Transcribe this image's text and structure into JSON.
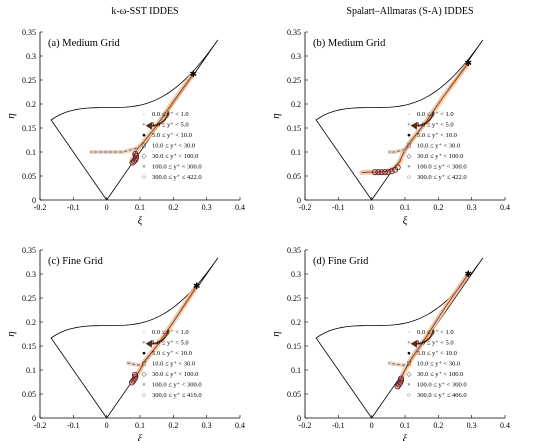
{
  "column_titles": [
    "k-ω-SST IDDES",
    "Spalart–Allmaras (S-A) IDDES"
  ],
  "chart_data": [
    {
      "type": "scatter",
      "title": "(a) Medium Grid",
      "xlabel": "ξ",
      "ylabel": "η",
      "xlim": [
        -0.2,
        0.4
      ],
      "ylim": [
        0,
        0.35
      ],
      "xticks": [
        "-0.2",
        "-0.1",
        "0",
        "0.1",
        "0.2",
        "0.3",
        "0.4"
      ],
      "yticks": [
        "0",
        "0.05",
        "0.1",
        "0.15",
        "0.2",
        "0.25",
        "0.3",
        "0.35"
      ],
      "legend": [
        "0.0 ≤ y⁺ < 1.0",
        "1.0 ≤ y⁺ < 5.0",
        "5.0 ≤ y⁺ < 10.0",
        "10.0 ≤ y⁺ < 30.0",
        "30.0 ≤ y⁺ < 100.0",
        "100.0 ≤ y⁺ < 300.0",
        "300.0 ≤ y⁺ ≤ 422.0"
      ],
      "legend_position": "inside-right",
      "trajectory": [
        [
          0.26,
          0.263
        ],
        [
          0.2,
          0.205
        ],
        [
          0.15,
          0.155
        ],
        [
          0.11,
          0.12
        ],
        [
          0.09,
          0.105
        ],
        [
          0.085,
          0.095
        ],
        [
          0.08,
          0.088
        ],
        [
          0.075,
          0.082
        ],
        [
          0.075,
          0.077
        ]
      ],
      "dashed_branch": [
        [
          0.09,
          0.108
        ],
        [
          0.05,
          0.1
        ],
        [
          0.0,
          0.1
        ],
        [
          -0.05,
          0.1
        ]
      ],
      "wall_points": [
        [
          0.078,
          0.078
        ],
        [
          0.082,
          0.081
        ],
        [
          0.086,
          0.084
        ],
        [
          0.088,
          0.088
        ],
        [
          0.088,
          0.092
        ],
        [
          0.086,
          0.096
        ]
      ]
    },
    {
      "type": "scatter",
      "title": "(b) Medium Grid",
      "xlabel": "ξ",
      "ylabel": "η",
      "xlim": [
        -0.2,
        0.4
      ],
      "ylim": [
        0,
        0.35
      ],
      "xticks": [
        "-0.2",
        "-0.1",
        "0",
        "0.1",
        "0.2",
        "0.3",
        "0.4"
      ],
      "yticks": [
        "0",
        "0.05",
        "0.1",
        "0.15",
        "0.2",
        "0.25",
        "0.3",
        "0.35"
      ],
      "legend": [
        "0.0 ≤ y⁺ < 1.0",
        "1.0 ≤ y⁺ < 5.0",
        "5.0 ≤ y⁺ < 10.0",
        "10.0 ≤ y⁺ < 30.0",
        "30.0 ≤ y⁺ < 100.0",
        "100.0 ≤ y⁺ < 300.0",
        "300.0 ≤ y⁺ ≤ 422.0"
      ],
      "legend_position": "inside-right",
      "trajectory": [
        [
          0.29,
          0.285
        ],
        [
          0.22,
          0.22
        ],
        [
          0.16,
          0.16
        ],
        [
          0.12,
          0.125
        ],
        [
          0.1,
          0.105
        ],
        [
          0.09,
          0.09
        ],
        [
          0.085,
          0.08
        ],
        [
          0.07,
          0.068
        ],
        [
          0.05,
          0.06
        ],
        [
          0.02,
          0.058
        ],
        [
          -0.01,
          0.058
        ],
        [
          -0.03,
          0.057
        ]
      ],
      "dashed_branch": [
        [
          0.1,
          0.105
        ],
        [
          0.07,
          0.1
        ],
        [
          0.05,
          0.1
        ]
      ],
      "wall_points": [
        [
          0.078,
          0.068
        ],
        [
          0.07,
          0.063
        ],
        [
          0.06,
          0.06
        ],
        [
          0.05,
          0.058
        ],
        [
          0.04,
          0.058
        ],
        [
          0.03,
          0.058
        ],
        [
          0.02,
          0.058
        ],
        [
          0.01,
          0.058
        ]
      ]
    },
    {
      "type": "scatter",
      "title": "(c) Fine Grid",
      "xlabel": "ξ",
      "ylabel": "η",
      "xlim": [
        -0.2,
        0.4
      ],
      "ylim": [
        0,
        0.35
      ],
      "xticks": [
        "-0.2",
        "-0.1",
        "0",
        "0.1",
        "0.2",
        "0.3",
        "0.4"
      ],
      "yticks": [
        "0",
        "0.05",
        "0.1",
        "0.15",
        "0.2",
        "0.25",
        "0.3",
        "0.35"
      ],
      "legend": [
        "0.0 ≤ y⁺ < 1.0",
        "1.0 ≤ y⁺ < 5.0",
        "5.0 ≤ y⁺ < 10.0",
        "10.0 ≤ y⁺ < 30.0",
        "30.0 ≤ y⁺ < 100.0",
        "100.0 ≤ y⁺ < 300.0",
        "300.0 ≤ y⁺ ≤ 419.0"
      ],
      "legend_position": "inside-right",
      "trajectory": [
        [
          0.27,
          0.275
        ],
        [
          0.2,
          0.2
        ],
        [
          0.15,
          0.15
        ],
        [
          0.11,
          0.115
        ],
        [
          0.1,
          0.1
        ],
        [
          0.09,
          0.09
        ],
        [
          0.08,
          0.08
        ],
        [
          0.075,
          0.075
        ]
      ],
      "dashed_branch": [
        [
          0.1,
          0.11
        ],
        [
          0.08,
          0.112
        ],
        [
          0.06,
          0.115
        ]
      ],
      "wall_points": [
        [
          0.076,
          0.074
        ],
        [
          0.08,
          0.078
        ],
        [
          0.084,
          0.082
        ],
        [
          0.086,
          0.086
        ],
        [
          0.085,
          0.09
        ]
      ]
    },
    {
      "type": "scatter",
      "title": "(d) Fine Grid",
      "xlabel": "ξ",
      "ylabel": "η",
      "xlim": [
        -0.2,
        0.4
      ],
      "ylim": [
        0,
        0.35
      ],
      "xticks": [
        "-0.2",
        "-0.1",
        "0",
        "0.1",
        "0.2",
        "0.3",
        "0.4"
      ],
      "yticks": [
        "0",
        "0.05",
        "0.1",
        "0.15",
        "0.2",
        "0.25",
        "0.3",
        "0.35"
      ],
      "legend": [
        "0.0 ≤ y⁺ < 1.0",
        "1.0 ≤ y⁺ < 5.0",
        "5.0 ≤ y⁺ < 10.0",
        "10.0 ≤ y⁺ < 30.0",
        "30.0 ≤ y⁺ < 100.0",
        "100.0 ≤ y⁺ < 300.0",
        "300.0 ≤ y⁺ ≤ 406.0"
      ],
      "legend_position": "inside-right",
      "trajectory": [
        [
          0.29,
          0.3
        ],
        [
          0.22,
          0.23
        ],
        [
          0.16,
          0.165
        ],
        [
          0.12,
          0.125
        ],
        [
          0.1,
          0.1
        ],
        [
          0.09,
          0.085
        ],
        [
          0.085,
          0.075
        ],
        [
          0.08,
          0.07
        ],
        [
          0.078,
          0.065
        ]
      ],
      "dashed_branch": [
        [
          0.1,
          0.11
        ],
        [
          0.07,
          0.112
        ],
        [
          0.05,
          0.115
        ]
      ],
      "wall_points": [
        [
          0.078,
          0.066
        ],
        [
          0.082,
          0.07
        ],
        [
          0.086,
          0.074
        ],
        [
          0.088,
          0.078
        ],
        [
          0.088,
          0.082
        ]
      ]
    }
  ],
  "colors": {
    "boundary": "#000000",
    "trajectory": "#b23a1c",
    "dashed": "#3a6fd8",
    "highlight": "#f2c08a",
    "arrow": "#5a2a14",
    "points": "#6a1f2c",
    "accent_blue": "#2a4fb0"
  }
}
